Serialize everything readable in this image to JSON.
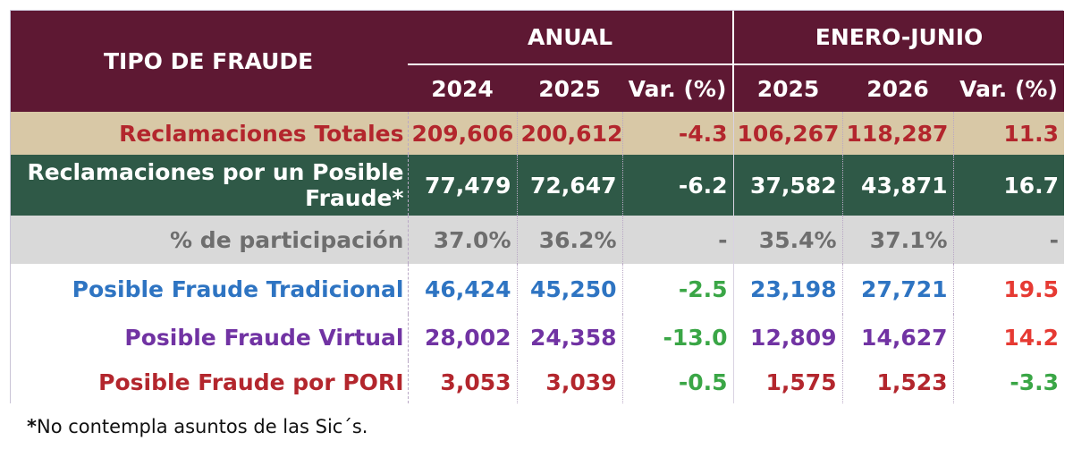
{
  "header": {
    "tipo": "TIPO DE FRAUDE",
    "anual": "ANUAL",
    "enero_junio": "ENERO-JUNIO",
    "cols": [
      "2024",
      "2025",
      "Var. (%)",
      "2025",
      "2026",
      "Var. (%)"
    ]
  },
  "rows": [
    {
      "label": "Reclamaciones Totales",
      "values": [
        "209,606",
        "200,612",
        "-4.3",
        "106,267",
        "118,287",
        "11.3"
      ]
    },
    {
      "label": "Reclamaciones por un Posible Fraude*",
      "values": [
        "77,479",
        "72,647",
        "-6.2",
        "37,582",
        "43,871",
        "16.7"
      ]
    },
    {
      "label": "% de participación",
      "values": [
        "37.0%",
        "36.2%",
        "-",
        "35.4%",
        "37.1%",
        "-"
      ]
    },
    {
      "label": "Posible Fraude Tradicional",
      "values": [
        "46,424",
        "45,250",
        "-2.5",
        "23,198",
        "27,721",
        "19.5"
      ]
    },
    {
      "label": "Posible Fraude Virtual",
      "values": [
        "28,002",
        "24,358",
        "-13.0",
        "12,809",
        "14,627",
        "14.2"
      ]
    },
    {
      "label": "Posible Fraude por PORI",
      "values": [
        "3,053",
        "3,039",
        "-0.5",
        "1,575",
        "1,523",
        "-3.3"
      ]
    }
  ],
  "footnote": {
    "star": "*",
    "text": "No contempla asuntos de las Sic´s."
  },
  "colors": {
    "header_bg": "#5e1833",
    "total_bg": "#d8c8a6",
    "posible_bg": "#2f5947",
    "participacion_bg": "#d9d9d9",
    "tradicional": "#2e74c2",
    "virtual": "#7133a3",
    "pori": "#b3262d",
    "negative_var": "#3aa646",
    "positive_var": "#e63a33"
  }
}
